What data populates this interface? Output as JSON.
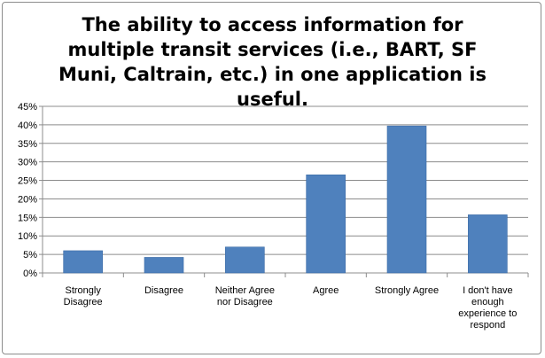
{
  "chart_data": {
    "type": "bar",
    "title": "The ability to access information for multiple transit services (i.e., BART, SF Muni, Caltrain, etc.) in one application is useful.",
    "categories": [
      "Strongly Disagree",
      "Disagree",
      "Neither Agree nor Disagree",
      "Agree",
      "Strongly Agree",
      "I don't have enough experience to respond"
    ],
    "category_lines": [
      [
        "Strongly",
        "Disagree"
      ],
      [
        "Disagree"
      ],
      [
        "Neither Agree",
        "nor Disagree"
      ],
      [
        "Agree"
      ],
      [
        "Strongly Agree"
      ],
      [
        "I don't have",
        "enough",
        "experience to",
        "respond"
      ]
    ],
    "values": [
      6,
      4.2,
      7,
      26.5,
      39.7,
      15.7
    ],
    "ylim": [
      0,
      45
    ],
    "yticks": [
      0,
      5,
      10,
      15,
      20,
      25,
      30,
      35,
      40,
      45
    ],
    "ytick_format": "%",
    "grid": true,
    "legend": "none",
    "bar_color": "#4f81bd"
  }
}
